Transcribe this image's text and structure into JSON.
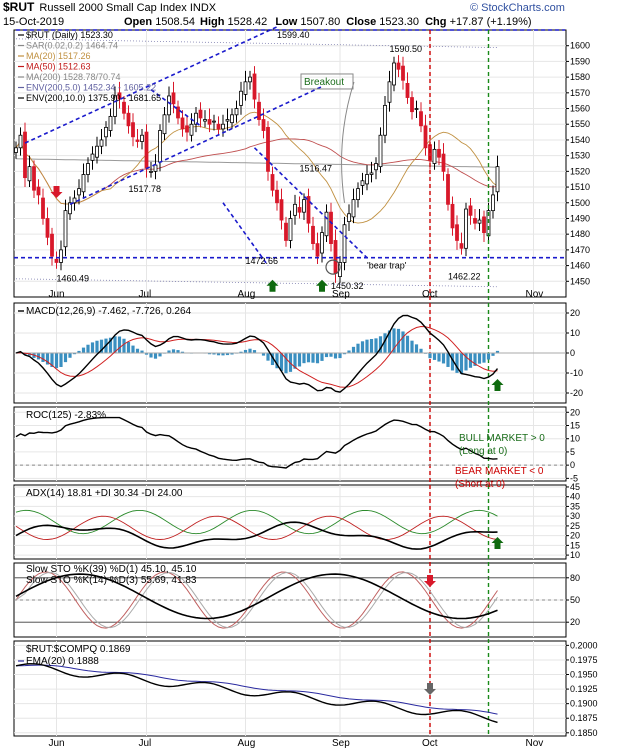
{
  "header": {
    "symbol": "$RUT",
    "name": "Russell 2000 Small Cap Index  INDX",
    "watermark": "© StockCharts.com",
    "date": "15-Oct-2019",
    "open_label": "Open",
    "open": "1508.54",
    "high_label": "High",
    "high": "1528.42",
    "low_label": "Low",
    "low": "1507.80",
    "close_label": "Close",
    "close": "1523.30",
    "chg_label": "Chg",
    "chg": "+17.87 (+1.19%)"
  },
  "chart_data": [
    {
      "id": "price",
      "type": "candlestick",
      "legend": [
        {
          "text": "$RUT (Daily) 1523.30",
          "color": "#000000"
        },
        {
          "text": "SAR(0.02,0.2) 1464.74",
          "color": "#888888"
        },
        {
          "text": "MA(20) 1517.26",
          "color": "#c09040"
        },
        {
          "text": "MA(50) 1512.63",
          "color": "#c01818"
        },
        {
          "text": "MA(200) 1528.78/70.74",
          "color": "#888888"
        },
        {
          "text": "ENV(200,5.0) 1452.34 - 1605.22",
          "color": "#6060a0"
        },
        {
          "text": "ENV(200,10.0) 1375.90 - 1681.65",
          "color": "#000000"
        }
      ],
      "ylim": [
        1440,
        1610
      ],
      "yticks": [
        1450,
        1460,
        1470,
        1480,
        1490,
        1500,
        1510,
        1520,
        1530,
        1540,
        1550,
        1560,
        1570,
        1580,
        1590,
        1600
      ],
      "annotations": [
        {
          "text": "1599.40",
          "x": 58,
          "y": 1605
        },
        {
          "text": "1590.50",
          "x": 83,
          "y": 1596
        },
        {
          "text": "1517.78",
          "x": 25,
          "y": 1507
        },
        {
          "text": "1516.47",
          "x": 63,
          "y": 1520
        },
        {
          "text": "1472.66",
          "x": 51,
          "y": 1461
        },
        {
          "text": "1460.49",
          "x": 9,
          "y": 1450
        },
        {
          "text": "1450.32",
          "x": 70,
          "y": 1445
        },
        {
          "text": "1462.22",
          "x": 96,
          "y": 1451
        },
        {
          "text": "'bear trap'",
          "x": 78,
          "y": 1458
        },
        {
          "text": "Breakout",
          "x": 64,
          "y": 1575
        }
      ],
      "closes": [
        1535,
        1543,
        1516,
        1523,
        1508,
        1505,
        1490,
        1478,
        1466,
        1462,
        1470,
        1495,
        1500,
        1503,
        1509,
        1518,
        1525,
        1531,
        1536,
        1540,
        1548,
        1555,
        1568,
        1566,
        1557,
        1549,
        1542,
        1539,
        1543,
        1522,
        1520,
        1524,
        1546,
        1556,
        1568,
        1563,
        1554,
        1547,
        1545,
        1550,
        1557,
        1554,
        1553,
        1550,
        1552,
        1547,
        1550,
        1553,
        1556,
        1560,
        1571,
        1577,
        1580,
        1566,
        1553,
        1546,
        1520,
        1508,
        1500,
        1489,
        1476,
        1490,
        1499,
        1494,
        1502,
        1487,
        1474,
        1466,
        1481,
        1494,
        1474,
        1455,
        1462,
        1486,
        1493,
        1502,
        1509,
        1514,
        1518,
        1519,
        1525,
        1543,
        1562,
        1577,
        1589,
        1585,
        1578,
        1567,
        1558,
        1560,
        1549,
        1535,
        1527,
        1534,
        1529,
        1520,
        1499,
        1484,
        1476,
        1471,
        1496,
        1492,
        1487,
        1489,
        1481,
        1495,
        1505,
        1523
      ]
    },
    {
      "id": "macd",
      "type": "line",
      "legend": "MACD(12,26,9) -7.462, -7.726, 0.264",
      "legend_values": [
        "-7.462",
        "-7.726",
        "0.264"
      ],
      "ylim": [
        -25,
        25
      ],
      "yticks": [
        20,
        10,
        0,
        -10,
        -20
      ]
    },
    {
      "id": "roc",
      "type": "line",
      "legend": "ROC(125) -2.83%",
      "legend_value": "-2.83%",
      "ylim": [
        -6,
        22
      ],
      "yticks": [
        20,
        15,
        10,
        5,
        0,
        -5
      ],
      "annotations": [
        {
          "text": "BULL MARKET > 0",
          "color": "#1a6d1a"
        },
        {
          "text": "(Long at 0)",
          "color": "#1a6d1a"
        },
        {
          "text": "BEAR MARKET < 0",
          "color": "#cc0000"
        },
        {
          "text": "(Short at 0)",
          "color": "#cc0000"
        }
      ]
    },
    {
      "id": "adx",
      "type": "line",
      "legend": "ADX(14) 18.81 +DI 30.34 -DI 24.00",
      "ylim": [
        8,
        46
      ],
      "yticks": [
        45,
        40,
        35,
        30,
        25,
        20,
        15,
        10
      ]
    },
    {
      "id": "stoch",
      "type": "line",
      "legend1": "Slow STO %K(39) %D(1) 45.10, 45.10",
      "legend1_values": [
        "45.10, 45.10"
      ],
      "legend2": "Slow STO %K(14) %D(3) 55.69, 41.83",
      "legend2_values": [
        "55.69",
        "41.83"
      ],
      "ylim": [
        0,
        100
      ],
      "yticks": [
        80,
        50,
        20
      ]
    },
    {
      "id": "ratio",
      "type": "line",
      "legend": "$RUT:$COMPQ 0.1869",
      "legend2": "EMA(20) 0.1888",
      "ylim": [
        0.18445,
        0.20075
      ],
      "yticks": [
        "0.2000",
        "0.1975",
        "0.1950",
        "0.1925",
        "0.1900",
        "0.1875",
        "0.1850"
      ]
    }
  ],
  "x_axis": {
    "months": [
      {
        "label": "Jun",
        "x": 9
      },
      {
        "label": "Jul",
        "x": 29
      },
      {
        "label": "Aug",
        "x": 51
      },
      {
        "label": "Sep",
        "x": 72
      },
      {
        "label": "Oct",
        "x": 92
      },
      {
        "label": "Nov",
        "x": 115
      }
    ]
  },
  "colors": {
    "up": "#000000",
    "down": "#d8182a",
    "trend_blue": "#1a1acc",
    "dashed_red": "#cc0000",
    "dashed_green": "#1a8a1a",
    "arrow_green": "#0f6a0f"
  }
}
